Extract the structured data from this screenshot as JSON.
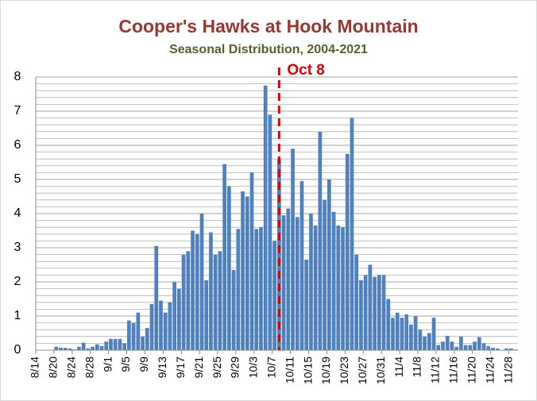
{
  "chart_data": {
    "type": "bar",
    "title": "Cooper's Hawks at Hook Mountain",
    "subtitle": "Seasonal Distribution, 2004-2021",
    "categories": [
      "8/14",
      null,
      null,
      null,
      "8/20",
      null,
      null,
      null,
      "8/24",
      null,
      null,
      null,
      "8/28",
      null,
      null,
      null,
      "9/1",
      null,
      null,
      null,
      "9/5",
      null,
      null,
      null,
      "9/9",
      null,
      null,
      null,
      "9/13",
      null,
      null,
      null,
      "9/17",
      null,
      null,
      null,
      "9/21",
      null,
      null,
      null,
      "9/25",
      null,
      null,
      null,
      "9/29",
      null,
      null,
      null,
      "10/3",
      null,
      null,
      null,
      "10/7",
      null,
      null,
      null,
      "10/11",
      null,
      null,
      null,
      "10/15",
      null,
      null,
      null,
      "10/19",
      null,
      null,
      null,
      "10/23",
      null,
      null,
      null,
      "10/27",
      null,
      null,
      null,
      "10/31",
      null,
      null,
      null,
      "11/4",
      null,
      null,
      null,
      "11/8",
      null,
      null,
      null,
      "11/12",
      null,
      null,
      null,
      "11/16",
      null,
      null,
      null,
      "11/20",
      null,
      null,
      null,
      "11/24",
      null,
      null,
      null,
      "11/28",
      null
    ],
    "values": [
      0,
      0,
      0,
      0,
      0.1,
      0.07,
      0.07,
      0.05,
      0.02,
      0.1,
      0.22,
      0.05,
      0.1,
      0.17,
      0.12,
      0.25,
      0.33,
      0.33,
      0.33,
      0.2,
      0.87,
      0.8,
      1.1,
      0.4,
      0.65,
      1.35,
      3.05,
      1.45,
      1.1,
      1.4,
      2.0,
      1.8,
      2.8,
      2.9,
      3.5,
      3.4,
      4.0,
      2.05,
      3.45,
      2.8,
      2.9,
      5.45,
      4.8,
      2.35,
      3.55,
      4.65,
      4.5,
      5.2,
      3.55,
      3.6,
      7.75,
      6.9,
      3.2,
      5.6,
      3.95,
      4.15,
      5.9,
      3.9,
      4.95,
      2.65,
      4.0,
      3.65,
      6.4,
      4.4,
      5.0,
      4.05,
      3.65,
      3.6,
      5.75,
      6.8,
      2.8,
      2.05,
      2.2,
      2.5,
      2.15,
      2.2,
      2.2,
      1.5,
      0.95,
      1.1,
      0.95,
      1.05,
      0.75,
      1.0,
      0.6,
      0.4,
      0.5,
      0.95,
      0.15,
      0.25,
      0.42,
      0.25,
      0.1,
      0.4,
      0.15,
      0.15,
      0.25,
      0.38,
      0.2,
      0.12,
      0.07,
      0.05,
      0,
      0.05,
      0.05,
      0.02
    ],
    "color": "#4f81bd",
    "ylim": [
      0,
      8
    ],
    "yticks": [
      0,
      1,
      2,
      3,
      4,
      5,
      6,
      7,
      8
    ],
    "grid": true,
    "minor_grid_step": 0.2,
    "annotations": [
      {
        "text": "Oct 8",
        "index": 53,
        "color": "#e00000"
      }
    ]
  }
}
